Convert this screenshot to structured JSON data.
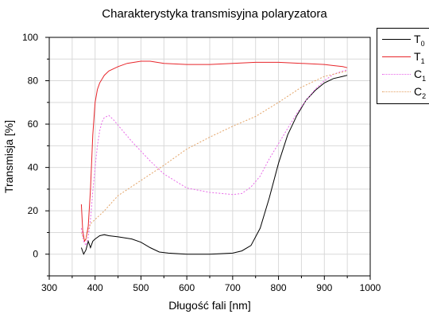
{
  "chart_data": {
    "type": "line",
    "title": "Charakterystyka transmisyjna polaryzatora",
    "xlabel": "Długość fali [nm]",
    "ylabel": "Transmisja [%]",
    "xlim": [
      300,
      1000
    ],
    "ylim": [
      -10,
      100
    ],
    "xticks": [
      "300",
      "400",
      "500",
      "600",
      "700",
      "800",
      "900",
      "1000"
    ],
    "yticks": [
      "0",
      "20",
      "40",
      "60",
      "80",
      "100"
    ],
    "grid": true,
    "legend_position": "outside-top-right",
    "series": [
      {
        "name": "T0",
        "base": "T",
        "sub": "0",
        "color": "#000000",
        "dash": "",
        "x": [
          370,
          375,
          380,
          385,
          390,
          395,
          400,
          410,
          420,
          430,
          450,
          480,
          500,
          520,
          540,
          560,
          600,
          650,
          700,
          720,
          740,
          760,
          780,
          800,
          820,
          840,
          860,
          880,
          900,
          920,
          940,
          950
        ],
        "y": [
          3,
          0,
          2,
          6,
          3,
          6,
          7,
          8.5,
          9,
          8.5,
          8,
          7,
          5.5,
          3,
          1,
          0.5,
          0,
          0,
          0.5,
          1.5,
          4,
          12,
          26,
          42,
          55,
          64,
          71,
          75.5,
          79,
          81,
          82,
          82.5
        ]
      },
      {
        "name": "T1",
        "base": "T",
        "sub": "1",
        "color": "#e8262b",
        "dash": "",
        "x": [
          370,
          373,
          377,
          380,
          385,
          390,
          395,
          400,
          405,
          410,
          420,
          430,
          450,
          470,
          500,
          520,
          550,
          600,
          650,
          700,
          750,
          800,
          850,
          900,
          920,
          940,
          950
        ],
        "y": [
          23,
          11,
          6,
          7,
          13,
          30,
          55,
          70,
          76,
          79,
          82.5,
          84.5,
          86.5,
          88,
          89,
          89,
          88,
          87.5,
          87.5,
          88,
          88.5,
          88.5,
          88,
          87.5,
          87,
          86.5,
          86
        ]
      },
      {
        "name": "C1",
        "base": "C",
        "sub": "1",
        "color": "#e86ae8",
        "dash": "2,2",
        "x": [
          370,
          375,
          380,
          385,
          390,
          395,
          400,
          405,
          410,
          415,
          420,
          430,
          440,
          460,
          480,
          500,
          520,
          550,
          600,
          650,
          700,
          720,
          740,
          760,
          780,
          800,
          820,
          840,
          860,
          880,
          900,
          920,
          940,
          950
        ],
        "y": [
          12,
          6,
          4,
          8,
          16,
          29,
          40,
          50,
          57,
          61,
          63,
          64,
          62,
          57,
          52,
          47.5,
          43,
          37,
          30.5,
          28.5,
          27.5,
          28,
          31,
          36,
          44,
          51,
          58,
          65,
          71,
          76,
          80,
          83,
          84.5,
          85
        ]
      },
      {
        "name": "C2",
        "base": "C",
        "sub": "2",
        "color": "#e3a366",
        "dash": "2,2",
        "x": [
          370,
          375,
          380,
          385,
          390,
          395,
          400,
          420,
          450,
          500,
          550,
          600,
          650,
          700,
          750,
          800,
          850,
          900,
          950
        ],
        "y": [
          10,
          7,
          7,
          11,
          14,
          15,
          16,
          20,
          27,
          34,
          41,
          48.5,
          54,
          59,
          63.5,
          70,
          77,
          82,
          84.5
        ]
      }
    ]
  }
}
